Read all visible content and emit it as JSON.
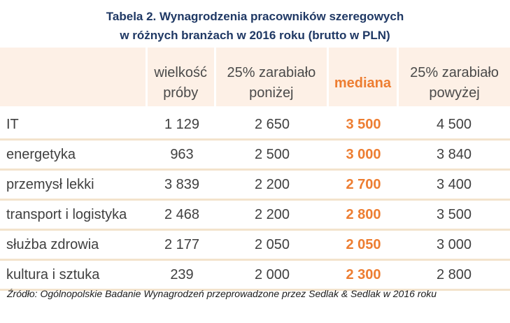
{
  "title": {
    "line1": "Tabela 2. Wynagrodzenia pracowników szeregowych",
    "line2": "w różnych branżach w 2016 roku (brutto w PLN)"
  },
  "table": {
    "headers": [
      {
        "line1": "",
        "line2": ""
      },
      {
        "line1": "wielkość",
        "line2": "próby"
      },
      {
        "line1": "25% zarabiało",
        "line2": "poniżej"
      },
      {
        "line1": "mediana",
        "line2": ""
      },
      {
        "line1": "25% zarabiało",
        "line2": "powyżej"
      }
    ],
    "rows": [
      {
        "branch": "IT",
        "sample": "1 129",
        "low25": "2 650",
        "median": "3 500",
        "high25": "4 500"
      },
      {
        "branch": "energetyka",
        "sample": "963",
        "low25": "2 500",
        "median": "3 000",
        "high25": "3 840"
      },
      {
        "branch": "przemysł lekki",
        "sample": "3 839",
        "low25": "2 200",
        "median": "2 700",
        "high25": "3 400"
      },
      {
        "branch": "transport i logistyka",
        "sample": "2 468",
        "low25": "2 200",
        "median": "2 800",
        "high25": "3 500"
      },
      {
        "branch": "służba zdrowia",
        "sample": "2 177",
        "low25": "2 050",
        "median": "2 050",
        "high25": "3 000"
      },
      {
        "branch": "kultura i sztuka",
        "sample": "239",
        "low25": "2 000",
        "median": "2 300",
        "high25": "2 800"
      }
    ]
  },
  "source": "Źródło: Ogólnopolskie Badanie Wynagrodzeń przeprowadzone przez Sedlak & Sedlak w 2016 roku",
  "colors": {
    "title": "#1f3864",
    "accent_median": "#ed7d31",
    "header_bg": "#fdf0e6",
    "row_border": "#f3e3cc",
    "text": "#404040"
  }
}
